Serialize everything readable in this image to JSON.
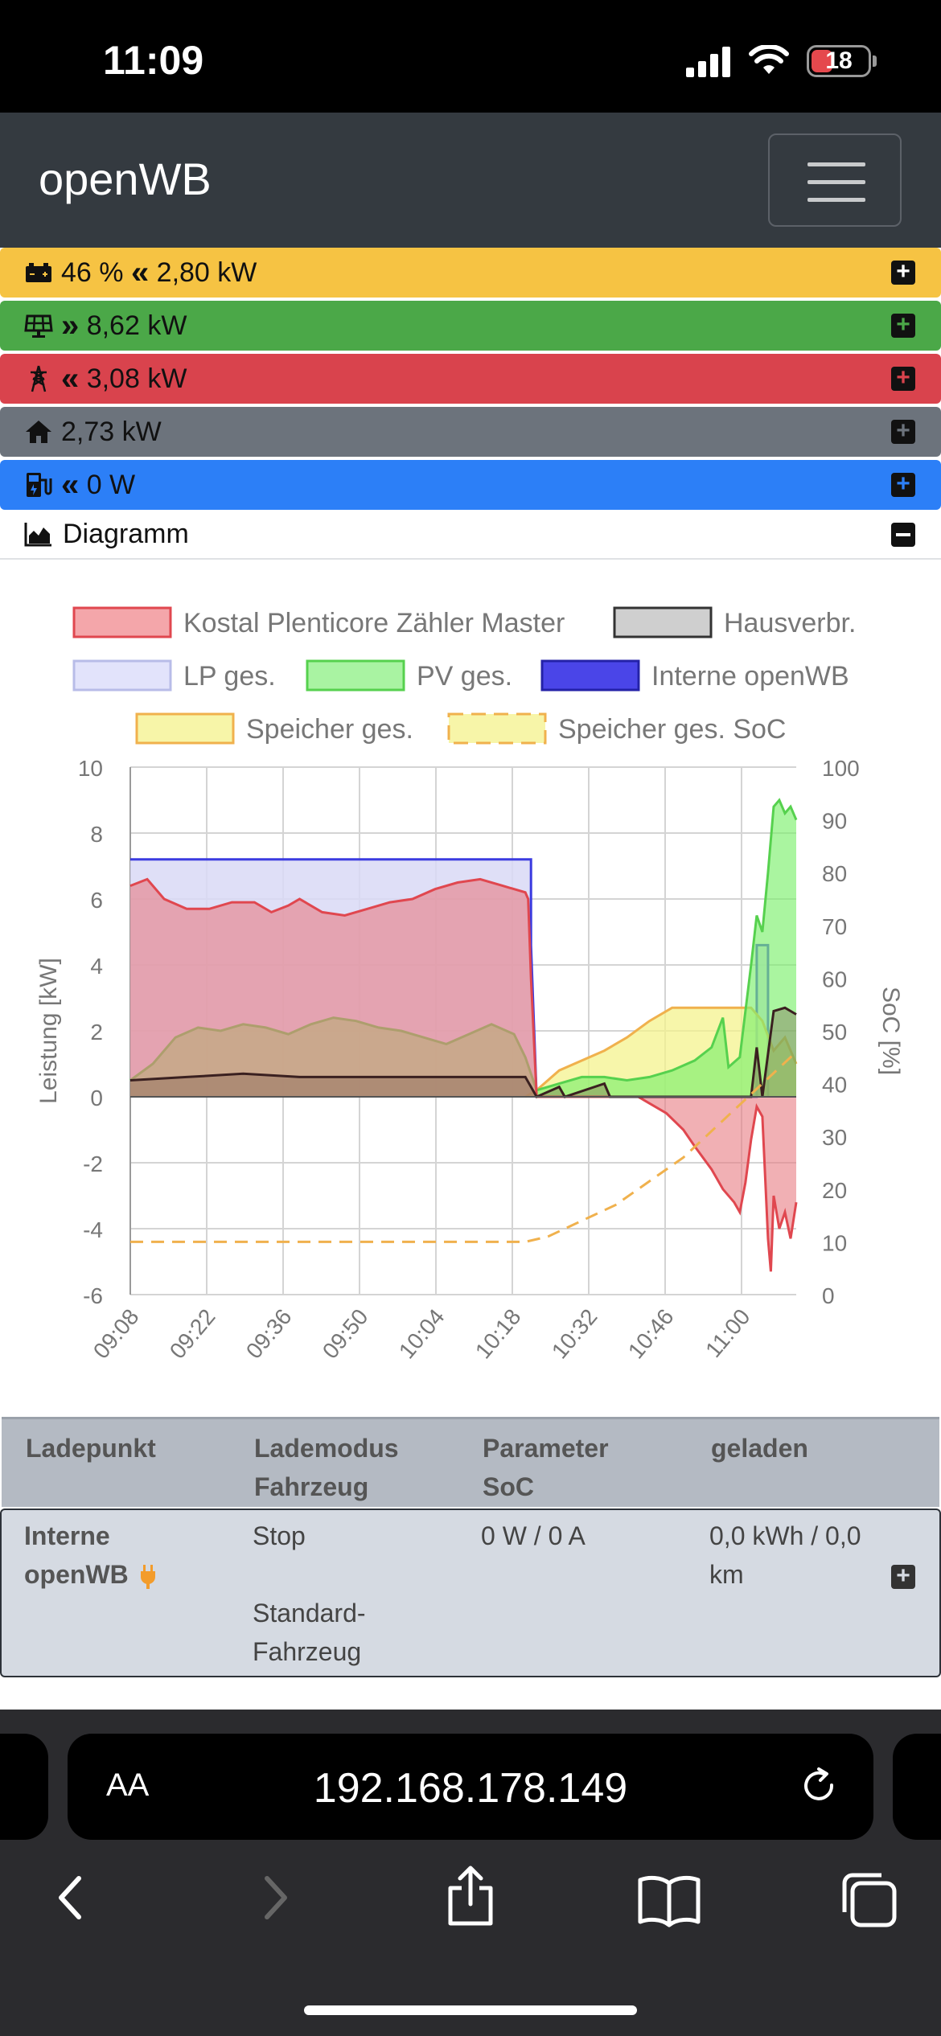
{
  "status": {
    "time": "11:09",
    "battery_level": "18"
  },
  "header": {
    "brand": "openWB"
  },
  "bars": [
    {
      "id": "speicher",
      "color": "#f6c343",
      "soc": "46 %",
      "arrow": "«",
      "power": "2,80 kW"
    },
    {
      "id": "pv",
      "color": "#4ba848",
      "arrow": "»",
      "power": "8,62 kW"
    },
    {
      "id": "evu",
      "color": "#d9434d",
      "arrow": "«",
      "power": "3,08 kW"
    },
    {
      "id": "haus",
      "color": "#6c737c",
      "power": "2,73 kW"
    },
    {
      "id": "lp",
      "color": "#2c7ff7",
      "arrow": "«",
      "power": "0 W"
    }
  ],
  "diagram": {
    "label": "Diagramm"
  },
  "chart_data": {
    "type": "area",
    "ylabel": "Leistung [kW]",
    "y2label": "SoC [%]",
    "ylim": [
      -6,
      10
    ],
    "y2lim": [
      0,
      100
    ],
    "yticks": [
      "10",
      "8",
      "6",
      "4",
      "2",
      "0",
      "-2",
      "-4",
      "-6"
    ],
    "y2ticks": [
      "100",
      "90",
      "80",
      "70",
      "60",
      "50",
      "40",
      "30",
      "20",
      "10",
      "0"
    ],
    "xticks": [
      "09:08",
      "09:22",
      "09:36",
      "09:50",
      "10:04",
      "10:18",
      "10:32",
      "10:46",
      "11:00"
    ],
    "legend": [
      {
        "label": "Kostal Plenticore Zähler Master",
        "fill": "#f4a6aa",
        "stroke": "#e0474f"
      },
      {
        "label": "Hausverbr.",
        "fill": "#cfcfcf",
        "stroke": "#333333"
      },
      {
        "label": "LP ges.",
        "fill": "#e2e3fb",
        "stroke": "#b8bce8"
      },
      {
        "label": "PV ges.",
        "fill": "#a9f3a2",
        "stroke": "#56d14e"
      },
      {
        "label": "Interne openWB",
        "fill": "#4a45e8",
        "stroke": "#2422a8"
      },
      {
        "label": "Speicher ges.",
        "fill": "#f7f5a8",
        "stroke": "#f0b14d"
      },
      {
        "label": "Speicher ges. SoC",
        "fill": "#f7f5a8",
        "stroke": "#f0b14d",
        "dashed": true
      }
    ],
    "series": [
      {
        "name": "Interne openWB",
        "points": [
          [
            0,
            7.2
          ],
          [
            10,
            7.2
          ],
          [
            20,
            7.2
          ],
          [
            40,
            7.2
          ],
          [
            60,
            7.2
          ],
          [
            70,
            7.2
          ],
          [
            71,
            7.2
          ],
          [
            71,
            4.6
          ],
          [
            72,
            0
          ],
          [
            110,
            0
          ],
          [
            111,
            0
          ],
          [
            111,
            4.6
          ],
          [
            113,
            4.6
          ],
          [
            113,
            0
          ]
        ]
      },
      {
        "name": "Kostal Plenticore Zähler Master",
        "points": [
          [
            0,
            6.4
          ],
          [
            3,
            6.6
          ],
          [
            6,
            6.0
          ],
          [
            10,
            5.7
          ],
          [
            14,
            5.7
          ],
          [
            18,
            5.9
          ],
          [
            22,
            5.9
          ],
          [
            25,
            5.6
          ],
          [
            28,
            5.8
          ],
          [
            30,
            6.0
          ],
          [
            34,
            5.6
          ],
          [
            38,
            5.5
          ],
          [
            42,
            5.7
          ],
          [
            46,
            5.9
          ],
          [
            50,
            6.0
          ],
          [
            54,
            6.3
          ],
          [
            58,
            6.5
          ],
          [
            62,
            6.6
          ],
          [
            66,
            6.4
          ],
          [
            70,
            6.2
          ],
          [
            70.5,
            6.0
          ],
          [
            71,
            3.6
          ],
          [
            72,
            0
          ],
          [
            90,
            0
          ],
          [
            92,
            -0.2
          ],
          [
            95,
            -0.5
          ],
          [
            98,
            -1.0
          ],
          [
            100,
            -1.5
          ],
          [
            103,
            -2.2
          ],
          [
            105,
            -2.8
          ],
          [
            107,
            -3.2
          ],
          [
            108,
            -3.5
          ],
          [
            109,
            -2.6
          ],
          [
            110,
            -1.3
          ],
          [
            111,
            -0.3
          ],
          [
            112,
            -0.6
          ],
          [
            113,
            -4.3
          ],
          [
            113.5,
            -5.3
          ],
          [
            114,
            -3.0
          ],
          [
            115,
            -4.0
          ],
          [
            116,
            -3.5
          ],
          [
            117,
            -4.3
          ],
          [
            118,
            -3.2
          ]
        ]
      },
      {
        "name": "PV ges.",
        "points": [
          [
            0,
            0.5
          ],
          [
            4,
            1.0
          ],
          [
            8,
            1.8
          ],
          [
            12,
            2.1
          ],
          [
            16,
            2.0
          ],
          [
            20,
            2.2
          ],
          [
            24,
            2.1
          ],
          [
            28,
            1.9
          ],
          [
            32,
            2.2
          ],
          [
            36,
            2.4
          ],
          [
            40,
            2.3
          ],
          [
            44,
            2.1
          ],
          [
            48,
            2.0
          ],
          [
            52,
            1.8
          ],
          [
            56,
            1.6
          ],
          [
            60,
            1.9
          ],
          [
            64,
            2.2
          ],
          [
            68,
            1.9
          ],
          [
            70,
            1.2
          ],
          [
            72,
            0.2
          ],
          [
            76,
            0.4
          ],
          [
            80,
            0.6
          ],
          [
            84,
            0.6
          ],
          [
            88,
            0.5
          ],
          [
            92,
            0.6
          ],
          [
            96,
            0.8
          ],
          [
            100,
            1.1
          ],
          [
            103,
            1.5
          ],
          [
            105,
            2.4
          ],
          [
            106,
            0.9
          ],
          [
            108,
            1.2
          ],
          [
            110,
            4.0
          ],
          [
            111,
            5.5
          ],
          [
            112,
            5.0
          ],
          [
            113,
            6.8
          ],
          [
            114,
            8.8
          ],
          [
            115,
            9.0
          ],
          [
            116,
            8.6
          ],
          [
            117,
            8.8
          ],
          [
            118,
            8.4
          ]
        ]
      },
      {
        "name": "Hausverbr.",
        "points": [
          [
            0,
            0.5
          ],
          [
            10,
            0.6
          ],
          [
            20,
            0.7
          ],
          [
            30,
            0.6
          ],
          [
            40,
            0.6
          ],
          [
            50,
            0.6
          ],
          [
            60,
            0.6
          ],
          [
            70,
            0.6
          ],
          [
            72,
            0
          ],
          [
            76,
            0.3
          ],
          [
            77,
            0
          ],
          [
            84,
            0.4
          ],
          [
            85,
            0
          ],
          [
            110,
            0
          ],
          [
            111,
            1.5
          ],
          [
            112,
            0
          ],
          [
            114,
            2.6
          ],
          [
            116,
            2.7
          ],
          [
            118,
            2.5
          ]
        ]
      },
      {
        "name": "Speicher ges.",
        "points": [
          [
            70,
            0
          ],
          [
            72,
            0.2
          ],
          [
            76,
            0.8
          ],
          [
            84,
            1.4
          ],
          [
            88,
            1.8
          ],
          [
            92,
            2.3
          ],
          [
            96,
            2.7
          ],
          [
            100,
            2.7
          ],
          [
            104,
            2.7
          ],
          [
            108,
            2.7
          ],
          [
            110,
            2.7
          ],
          [
            112,
            2.3
          ],
          [
            114,
            1.4
          ],
          [
            116,
            1.8
          ],
          [
            118,
            1.0
          ]
        ]
      },
      {
        "name": "Speicher ges. SoC",
        "axis": "y2",
        "points": [
          [
            0,
            10
          ],
          [
            20,
            10
          ],
          [
            40,
            10
          ],
          [
            60,
            10
          ],
          [
            70,
            10
          ],
          [
            74,
            11
          ],
          [
            78,
            13
          ],
          [
            82,
            15
          ],
          [
            86,
            17
          ],
          [
            90,
            20
          ],
          [
            94,
            23
          ],
          [
            98,
            26
          ],
          [
            102,
            30
          ],
          [
            106,
            34
          ],
          [
            110,
            38
          ],
          [
            114,
            42
          ],
          [
            118,
            46
          ]
        ]
      }
    ]
  },
  "table": {
    "headers": [
      [
        "Ladepunkt"
      ],
      [
        "Lademodus",
        "Fahrzeug"
      ],
      [
        "Parameter",
        "SoC"
      ],
      [
        "geladen"
      ]
    ],
    "row": {
      "ladepunkt": [
        "Interne",
        "openWB"
      ],
      "lademodus": "Stop",
      "fahrzeug": [
        "Standard-",
        "Fahrzeug"
      ],
      "parameter": "0 W / 0 A",
      "geladen": [
        "0,0 kWh / 0,0",
        "km"
      ]
    }
  },
  "browser": {
    "aa_label": "AA",
    "url": "192.168.178.149"
  }
}
